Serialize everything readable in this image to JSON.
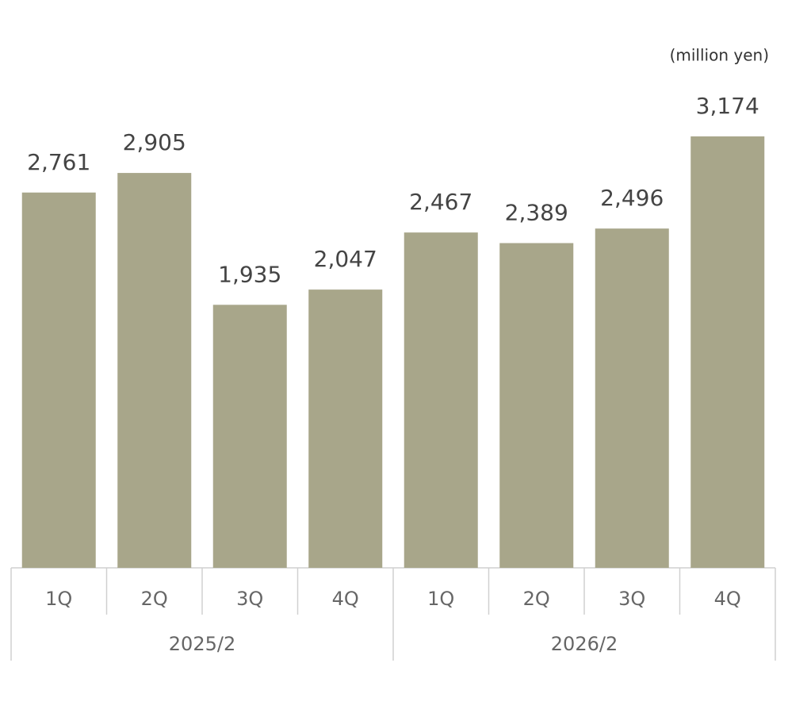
{
  "chart_data": {
    "type": "bar",
    "unit_label": "(million yen)",
    "categories": [
      "1Q",
      "2Q",
      "3Q",
      "4Q",
      "1Q",
      "2Q",
      "3Q",
      "4Q"
    ],
    "groups": [
      "2025/2",
      "2026/2"
    ],
    "values": [
      2761,
      2905,
      1935,
      2047,
      2467,
      2389,
      2496,
      3174
    ],
    "value_labels": [
      "2,761",
      "2,905",
      "1,935",
      "2,047",
      "2,467",
      "2,389",
      "2,496",
      "3,174"
    ],
    "color": "#a8a68a"
  }
}
